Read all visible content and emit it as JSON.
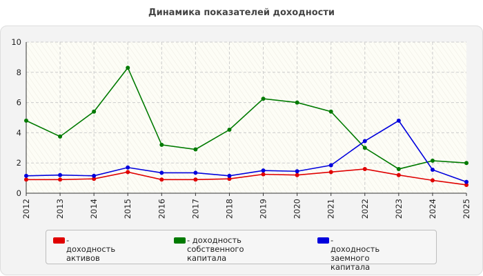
{
  "chart_data": {
    "type": "line",
    "title": "Динамика показателей доходности",
    "xlabel": "",
    "ylabel": "",
    "categories": [
      "2012",
      "2013",
      "2014",
      "2015",
      "2016",
      "2017",
      "2018",
      "2019",
      "2020",
      "2021",
      "2022",
      "2023",
      "2024",
      "2025"
    ],
    "ylim": [
      0,
      10
    ],
    "yticks": [
      "0",
      "2",
      "4",
      "6",
      "8",
      "10"
    ],
    "grid": true,
    "legend_position": "bottom",
    "series": [
      {
        "name": "- доходность активов",
        "color": "#e00000",
        "values": [
          0.9,
          0.9,
          0.95,
          1.4,
          0.9,
          0.9,
          0.95,
          1.25,
          1.2,
          1.4,
          1.6,
          1.2,
          0.85,
          0.55
        ]
      },
      {
        "name": "- доходность собственного капитала",
        "color": "#007a00",
        "values": [
          4.8,
          3.75,
          5.4,
          8.3,
          3.2,
          2.9,
          4.2,
          6.25,
          6.0,
          5.4,
          3.0,
          1.6,
          2.15,
          2.0
        ]
      },
      {
        "name": "- доходность заемного капитала",
        "color": "#0000dd",
        "values": [
          1.15,
          1.2,
          1.15,
          1.7,
          1.35,
          1.35,
          1.15,
          1.5,
          1.45,
          1.85,
          3.45,
          4.8,
          1.55,
          0.75
        ]
      }
    ]
  },
  "legend": {
    "items": [
      {
        "lines": [
          "- доходность активов"
        ]
      },
      {
        "lines": [
          "- доходность собственного",
          "капитала"
        ]
      },
      {
        "lines": [
          "- доходность заемного",
          "капитала"
        ]
      }
    ]
  }
}
